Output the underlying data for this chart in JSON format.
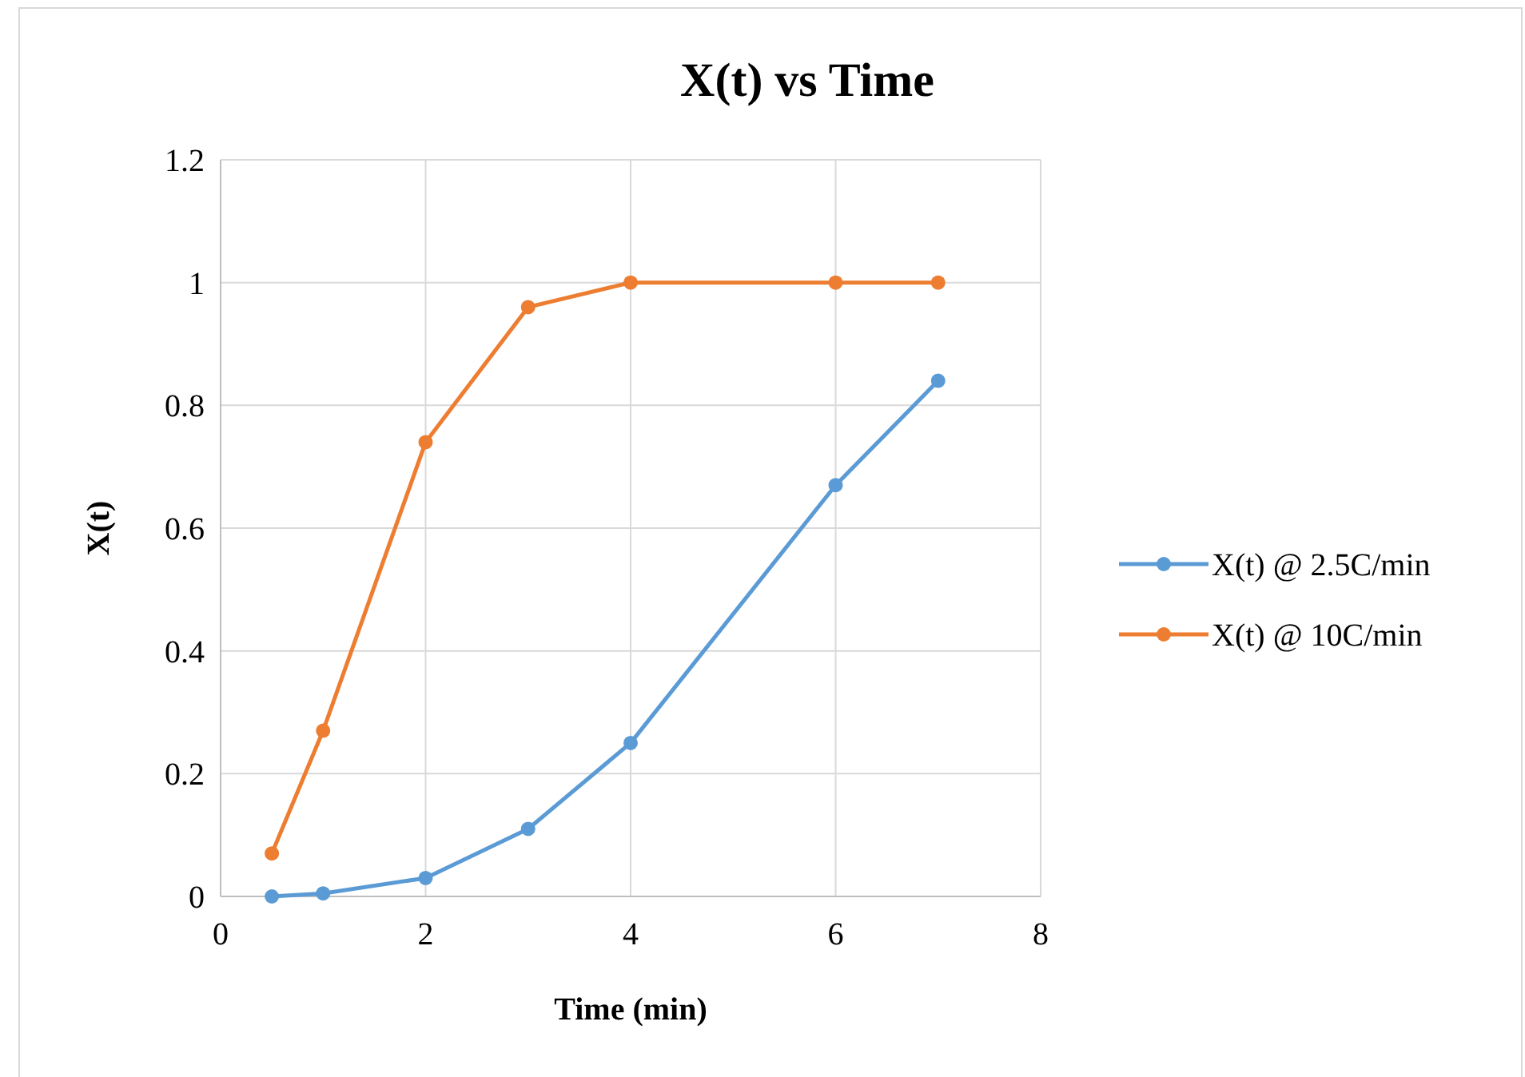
{
  "chart_data": {
    "type": "line",
    "title": "X(t) vs Time",
    "xlabel": "Time (min)",
    "ylabel": "X(t)",
    "x": [
      0.5,
      1,
      2,
      3,
      4,
      6,
      7
    ],
    "series": [
      {
        "name": "X(t) @ 2.5C/min",
        "color": "#5b9bd5",
        "values": [
          0,
          0.005,
          0.03,
          0.11,
          0.25,
          0.67,
          0.84
        ]
      },
      {
        "name": "X(t) @ 10C/min",
        "color": "#ed7d31",
        "values": [
          0.07,
          0.27,
          0.74,
          0.96,
          1.0,
          1.0,
          1.0
        ]
      }
    ],
    "xlim": [
      0,
      8
    ],
    "xticks": [
      0,
      2,
      4,
      6,
      8
    ],
    "ylim": [
      0,
      1.2
    ],
    "yticks": [
      0,
      {
        "value": 0.2,
        "label": "0.2"
      },
      {
        "value": 0.4,
        "label": "0.4"
      },
      {
        "value": 0.6,
        "label": "0.6"
      },
      {
        "value": 0.8,
        "label": "0.8"
      },
      1,
      {
        "value": 1.2,
        "label": "1.2"
      }
    ],
    "grid": true,
    "legend": "right",
    "marker": "circle",
    "line_style": "solid"
  }
}
